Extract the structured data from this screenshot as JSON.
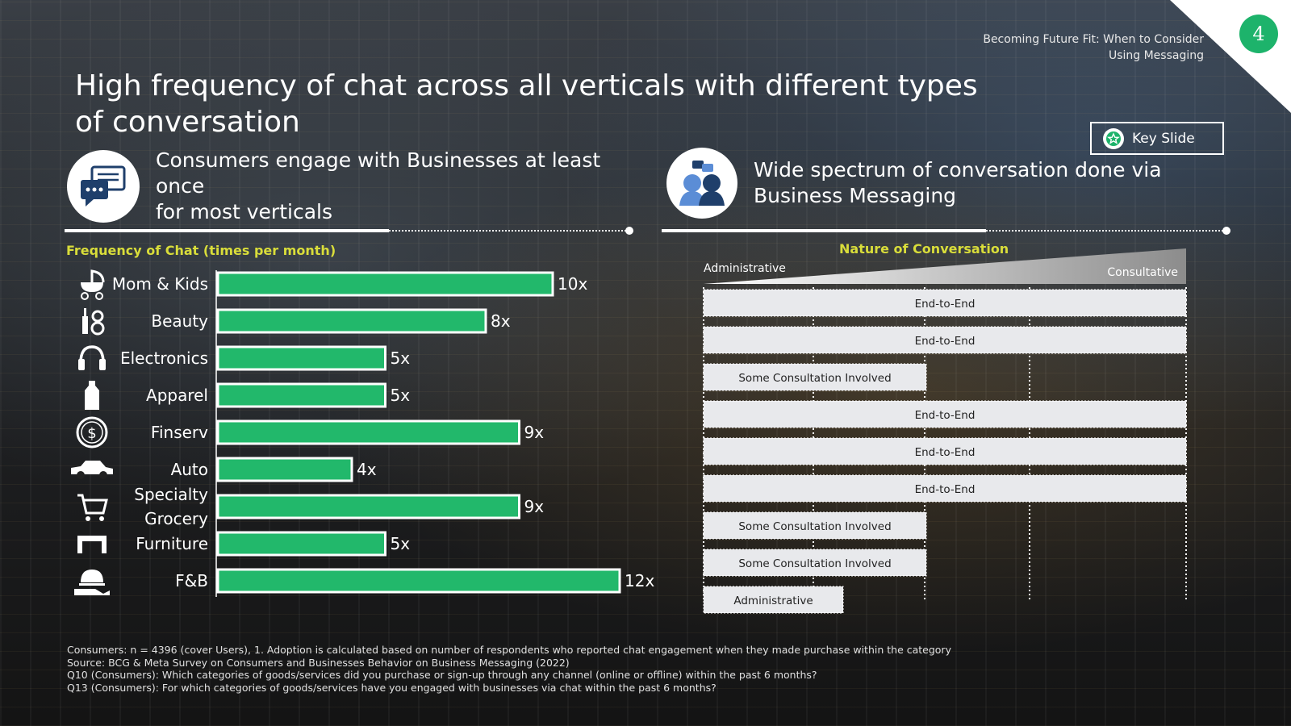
{
  "header": {
    "page_number": "4",
    "deck_title_line1": "Becoming Future Fit: When to Consider",
    "deck_title_line2": "Using Messaging"
  },
  "title_line1": "High frequency of chat across all verticals with different types",
  "title_line2": "of conversation",
  "key_slide": {
    "label": "Key Slide",
    "icon": "star-badge-icon"
  },
  "left_section": {
    "line1": "Consumers engage with Businesses at least once",
    "line2": "for most verticals",
    "icon": "chat-bubbles-icon"
  },
  "right_section": {
    "line1": "Wide spectrum of conversation done via",
    "line2": "Business Messaging",
    "icon": "people-talking-icon"
  },
  "colors": {
    "bar": "#22b86b",
    "accent": "#d9dd3a",
    "pill": "#e8e9ec",
    "badge": "#1db36b"
  },
  "chart_data": [
    {
      "type": "bar",
      "orientation": "horizontal",
      "title": "Frequency of Chat (times per month)",
      "categories": [
        "Mom & Kids",
        "Beauty",
        "Electronics",
        "Apparel",
        "Finserv",
        "Auto",
        "Specialty Grocery",
        "Furniture",
        "F&B"
      ],
      "category_icons": [
        "stroller-icon",
        "cosmetics-icon",
        "headphones-icon",
        "apparel-icon",
        "dollar-coin-icon",
        "car-icon",
        "shopping-cart-icon",
        "furniture-icon",
        "food-service-icon"
      ],
      "values": [
        10,
        8,
        5,
        5,
        9,
        4,
        9,
        5,
        12
      ],
      "value_labels": [
        "10x",
        "8x",
        "5x",
        "5x",
        "9x",
        "4x",
        "9x",
        "5x",
        "12x"
      ],
      "xlim": [
        0,
        12
      ],
      "grid": false
    },
    {
      "type": "table",
      "title": "Nature of Conversation",
      "scale_left": "Administrative",
      "scale_right": "Consultative",
      "levels": [
        "Administrative",
        "Some Consultation Involved",
        "End-to-End"
      ],
      "rows": [
        {
          "category": "Mom & Kids",
          "label": "End-to-End",
          "level": 3
        },
        {
          "category": "Beauty",
          "label": "End-to-End",
          "level": 3
        },
        {
          "category": "Electronics",
          "label": "Some Consultation Involved",
          "level": 2
        },
        {
          "category": "Apparel",
          "label": "End-to-End",
          "level": 3
        },
        {
          "category": "Finserv",
          "label": "End-to-End",
          "level": 3
        },
        {
          "category": "Auto",
          "label": "End-to-End",
          "level": 3
        },
        {
          "category": "Specialty Grocery",
          "label": "Some Consultation Involved",
          "level": 2
        },
        {
          "category": "Furniture",
          "label": "Some Consultation Involved",
          "level": 2
        },
        {
          "category": "F&B",
          "label": "Administrative",
          "level": 1
        }
      ]
    }
  ],
  "footnotes": [
    "Consumers: n = 4396 (cover Users), 1. Adoption is calculated based on number of respondents who reported chat engagement when they made purchase within the category",
    "Source: BCG & Meta Survey on Consumers and Businesses Behavior on Business Messaging (2022)",
    "Q10 (Consumers): Which categories of goods/services did you purchase or sign-up through any channel (online or offline) within the past 6 months?",
    "Q13 (Consumers): For which categories of goods/services have you engaged with businesses via chat within the past 6 months?"
  ]
}
